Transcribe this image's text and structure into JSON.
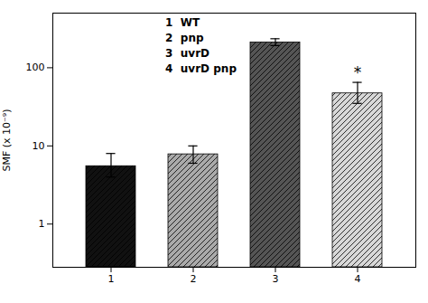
{
  "chart_data": {
    "type": "bar",
    "categories": [
      "1",
      "2",
      "3",
      "4"
    ],
    "values": [
      5.5,
      7.8,
      210,
      47
    ],
    "errors_upper": [
      2.5,
      2.2,
      25,
      18
    ],
    "errors_lower": [
      1.5,
      1.8,
      18,
      12
    ],
    "colors": [
      "#111111",
      "#aaaaaa",
      "#555555",
      "#d8d8d8"
    ],
    "ylabel": "SMF (x 10⁻⁹)",
    "log": "y",
    "ylim": [
      0.28,
      500
    ],
    "yticks": [
      1,
      10,
      100
    ],
    "grid": false,
    "annotations": [
      {
        "text": "*",
        "x": "4",
        "y": 75
      },
      {
        "text": "1  WT"
      },
      {
        "text": "2  pnp"
      },
      {
        "text": "3  uvrD"
      },
      {
        "text": "4  uvrD pnp"
      }
    ]
  }
}
